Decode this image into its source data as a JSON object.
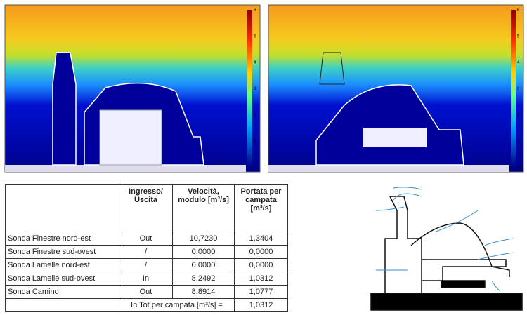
{
  "colorbars": [
    {
      "ticks": [
        0,
        1,
        2,
        3,
        4,
        5,
        6
      ]
    },
    {
      "ticks": [
        0,
        1,
        2,
        3,
        4,
        5,
        6
      ]
    }
  ],
  "table": {
    "header": [
      "Ingresso/ Uscita",
      "Velocità, modulo [m³/s]",
      "Portata per campata [m³/s]"
    ],
    "rows": [
      [
        "Sonda Finestre nord-est",
        "Out",
        "10,7230",
        "1,3404"
      ],
      [
        "Sonda Finestre sud-ovest",
        "/",
        "0,0000",
        "0,0000"
      ],
      [
        "Sonda Lamelle nord-est",
        "/",
        "0,0000",
        "0,0000"
      ],
      [
        "Sonda Lamelle sud-ovest",
        "In",
        "8,2492",
        "1,0312"
      ],
      [
        "Sonda Camino",
        "Out",
        "8,8914",
        "1,0777"
      ]
    ],
    "total": {
      "label": "In Tot per campata [m³/s] =",
      "value": "1,0312"
    }
  }
}
